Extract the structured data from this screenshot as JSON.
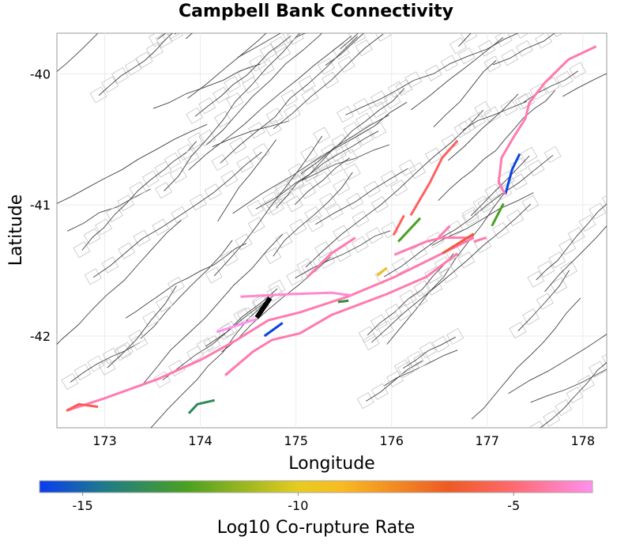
{
  "chart_data": {
    "type": "line",
    "title": "Campbell Bank Connectivity",
    "xlabel": "Longitude",
    "ylabel": "Latitude",
    "xlim": [
      172.5,
      178.25
    ],
    "ylim": [
      -42.7,
      -39.69
    ],
    "xticks": [
      173,
      174,
      175,
      176,
      177,
      178
    ],
    "yticks": [
      -40,
      -41,
      -42
    ],
    "grid": true,
    "colorbar": {
      "label": "Log10 Co-rupture Rate",
      "range": [
        -16.0,
        -3.17
      ],
      "ticks": [
        -15,
        -10,
        -5
      ],
      "stops": [
        {
          "value": -16.0,
          "color": "#0a3cf0"
        },
        {
          "value": -14.5,
          "color": "#1f7a8a"
        },
        {
          "value": -12.6,
          "color": "#4aa021"
        },
        {
          "value": -10.0,
          "color": "#e6cc20"
        },
        {
          "value": -9.0,
          "color": "#f8bb22"
        },
        {
          "value": -6.5,
          "color": "#ee5a24"
        },
        {
          "value": -5.0,
          "color": "#ff6a70"
        },
        {
          "value": -3.17,
          "color": "#ff90ee"
        }
      ],
      "placement": "bottom"
    },
    "series": [
      {
        "name": "source-fault",
        "value": null,
        "color": "#000000",
        "lon": [
          174.59,
          174.73
        ],
        "lat": [
          -41.86,
          -41.71
        ]
      },
      {
        "name": "trace-1",
        "value": -4.2,
        "color": "#ff7ab0",
        "lon": [
          172.6,
          172.98,
          173.55,
          174.01,
          174.38,
          174.71,
          175.04,
          175.54,
          176.03,
          176.53,
          176.86
        ],
        "lat": [
          -42.57,
          -42.48,
          -42.33,
          -42.18,
          -42.03,
          -41.88,
          -41.82,
          -41.7,
          -41.55,
          -41.37,
          -41.25
        ]
      },
      {
        "name": "trace-2",
        "value": -4.2,
        "color": "#ff7ab0",
        "lon": [
          174.26,
          174.55,
          174.75,
          175.04,
          175.37,
          175.95,
          176.36,
          176.69
        ],
        "lat": [
          -42.3,
          -42.12,
          -42.03,
          -41.98,
          -41.84,
          -41.68,
          -41.55,
          -41.37
        ]
      },
      {
        "name": "trace-3",
        "value": -4.2,
        "color": "#ff7ab0",
        "lon": [
          176.86,
          176.99
        ],
        "lat": [
          -41.28,
          -41.25
        ]
      },
      {
        "name": "trace-4",
        "value": -12.5,
        "color": "#4aa021",
        "lon": [
          177.05,
          177.17
        ],
        "lat": [
          -41.16,
          -40.99
        ]
      },
      {
        "name": "trace-5",
        "value": -15.8,
        "color": "#0a44e0",
        "lon": [
          177.19,
          177.26,
          177.34
        ],
        "lat": [
          -40.92,
          -40.73,
          -40.61
        ]
      },
      {
        "name": "trace-6",
        "value": -4.2,
        "color": "#ff7ab0",
        "lon": [
          178.14,
          177.85,
          177.6,
          177.44,
          177.4,
          177.27,
          177.15,
          177.12,
          177.19
        ],
        "lat": [
          -39.79,
          -39.89,
          -40.07,
          -40.22,
          -40.34,
          -40.49,
          -40.64,
          -40.83,
          -40.92
        ]
      },
      {
        "name": "trace-7",
        "value": -5.2,
        "color": "#ff6060",
        "lon": [
          176.69,
          176.53,
          176.4,
          176.28,
          176.2
        ],
        "lat": [
          -40.51,
          -40.64,
          -40.83,
          -40.98,
          -41.08
        ]
      },
      {
        "name": "trace-8",
        "value": -5.2,
        "color": "#ff6060",
        "lon": [
          176.02,
          176.13
        ],
        "lat": [
          -41.23,
          -41.08
        ]
      },
      {
        "name": "trace-9",
        "value": -12.5,
        "color": "#4aa021",
        "lon": [
          176.07,
          176.3
        ],
        "lat": [
          -41.28,
          -41.1
        ]
      },
      {
        "name": "trace-10",
        "value": -4.2,
        "color": "#ff7ab0",
        "lon": [
          175.12,
          175.37,
          175.62
        ],
        "lat": [
          -41.55,
          -41.37,
          -41.25
        ]
      },
      {
        "name": "trace-11",
        "value": -4.2,
        "color": "#ff7ab0",
        "lon": [
          176.03,
          176.36,
          176.53,
          176.86
        ],
        "lat": [
          -41.38,
          -41.28,
          -41.25,
          -41.25
        ]
      },
      {
        "name": "trace-12",
        "value": -4.2,
        "color": "#ff7ab0",
        "lon": [
          176.49,
          176.61
        ],
        "lat": [
          -41.25,
          -41.16
        ]
      },
      {
        "name": "trace-13",
        "value": -6.0,
        "color": "#f05a3a",
        "lon": [
          176.53,
          176.86
        ],
        "lat": [
          -41.37,
          -41.22
        ]
      },
      {
        "name": "trace-14",
        "value": -9.5,
        "color": "#f0c020",
        "lon": [
          175.85,
          175.95
        ],
        "lat": [
          -41.54,
          -41.48
        ]
      },
      {
        "name": "trace-15",
        "value": -4.0,
        "color": "#ff88d0",
        "lon": [
          174.42,
          174.96,
          175.37,
          175.58
        ],
        "lat": [
          -41.7,
          -41.68,
          -41.67,
          -41.69
        ]
      },
      {
        "name": "trace-16",
        "value": -3.4,
        "color": "#ff90ee",
        "lon": [
          174.17,
          174.59
        ],
        "lat": [
          -41.97,
          -41.87
        ]
      },
      {
        "name": "trace-17",
        "value": -15.8,
        "color": "#0a44e0",
        "lon": [
          174.67,
          174.86
        ],
        "lat": [
          -42.0,
          -41.9
        ]
      },
      {
        "name": "trace-18",
        "value": -13.5,
        "color": "#3a8a3a",
        "lon": [
          175.44,
          175.55
        ],
        "lat": [
          -41.74,
          -41.73
        ]
      },
      {
        "name": "trace-19",
        "value": -14.0,
        "color": "#2e8a5a",
        "lon": [
          173.88,
          173.97,
          174.15
        ],
        "lat": [
          -42.59,
          -42.52,
          -42.49
        ]
      },
      {
        "name": "trace-20",
        "value": -5.5,
        "color": "#ff5a50",
        "lon": [
          172.6,
          172.73,
          172.93
        ],
        "lat": [
          -42.57,
          -42.52,
          -42.54
        ]
      }
    ]
  }
}
